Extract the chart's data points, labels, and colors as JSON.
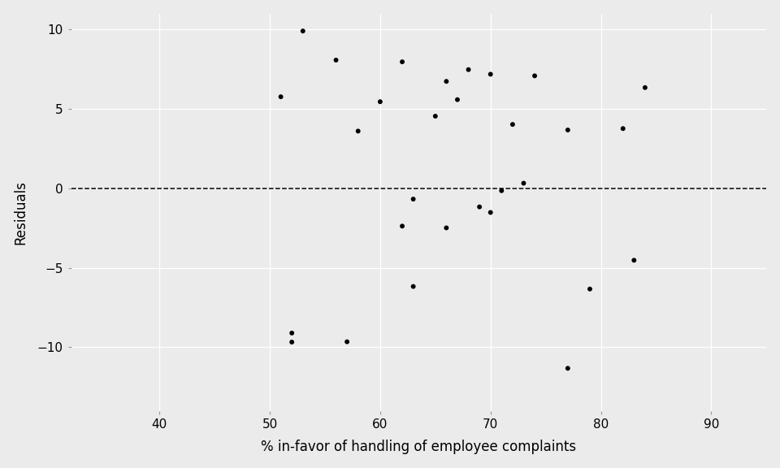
{
  "complaints": [
    77,
    63,
    67,
    69,
    56,
    66,
    53,
    68,
    66,
    60,
    52,
    52,
    62,
    70,
    58,
    70,
    71,
    62,
    72,
    77,
    74,
    73,
    51,
    83,
    82,
    57,
    65,
    79,
    63,
    84
  ],
  "residuals": [
    3.67,
    -0.68,
    5.58,
    -1.17,
    8.07,
    6.73,
    9.9,
    7.47,
    -2.49,
    5.45,
    -9.68,
    -9.11,
    7.96,
    7.18,
    3.6,
    -1.52,
    -0.15,
    -2.38,
    4.02,
    -11.33,
    7.08,
    0.32,
    5.76,
    -4.53,
    3.76,
    -9.66,
    4.54,
    -6.34,
    -6.18,
    6.34
  ],
  "xlabel": "% in-favor of handling of employee complaints",
  "ylabel": "Residuals",
  "xlim": [
    32,
    95
  ],
  "ylim": [
    -14,
    11
  ],
  "xticks": [
    40,
    50,
    60,
    70,
    80,
    90
  ],
  "yticks": [
    -10,
    -5,
    0,
    5,
    10
  ],
  "bg_color": "#EBEBEB",
  "grid_color": "#FFFFFF",
  "point_color": "#000000",
  "point_size": 18,
  "label_fontsize": 12,
  "tick_labelsize": 11
}
